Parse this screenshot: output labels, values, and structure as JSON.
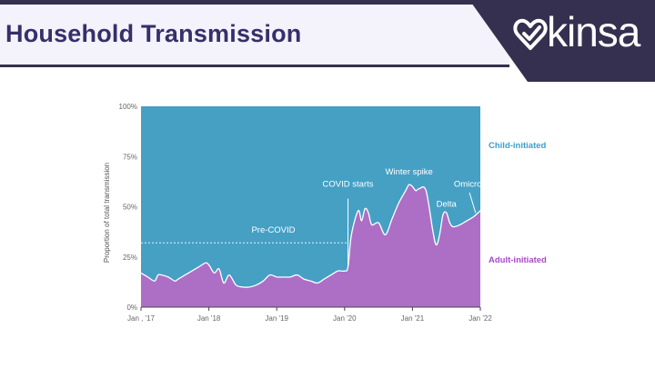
{
  "header": {
    "title": "Household Transmission",
    "logo_text": "kinsa",
    "logo_icon": "heart-check-icon",
    "colors": {
      "bar": "#35304f",
      "title": "#35306a",
      "band": "#f4f2fa"
    }
  },
  "chart_data": {
    "type": "area",
    "stacked": true,
    "percent_stacked": true,
    "ylabel": "Proportion of total transmission",
    "xlabel": "",
    "xlim": [
      2017.0,
      2022.0
    ],
    "ylim": [
      0,
      100
    ],
    "x_ticks": [
      {
        "value": 2017,
        "label": "Jan , '17"
      },
      {
        "value": 2018,
        "label": "Jan '18"
      },
      {
        "value": 2019,
        "label": "Jan '19"
      },
      {
        "value": 2020,
        "label": "Jan '20"
      },
      {
        "value": 2021,
        "label": "Jan '21"
      },
      {
        "value": 2022,
        "label": "Jan '22"
      }
    ],
    "y_ticks": [
      {
        "value": 0,
        "label": "0%"
      },
      {
        "value": 25,
        "label": "25%"
      },
      {
        "value": 50,
        "label": "50%"
      },
      {
        "value": 75,
        "label": "75%"
      },
      {
        "value": 100,
        "label": "100%"
      }
    ],
    "grid": false,
    "series": [
      {
        "name": "Adult-initiated",
        "color": "#ad6fc6",
        "label_color": "#a64bc6"
      },
      {
        "name": "Child-initiated",
        "color": "#45a0c4",
        "label_color": "#3a9fcc"
      }
    ],
    "x": [
      2017.0,
      2017.1,
      2017.2,
      2017.25,
      2017.3,
      2017.4,
      2017.5,
      2017.55,
      2017.7,
      2017.85,
      2017.95,
      2018.0,
      2018.08,
      2018.15,
      2018.22,
      2018.3,
      2018.4,
      2018.5,
      2018.6,
      2018.7,
      2018.8,
      2018.9,
      2019.0,
      2019.1,
      2019.2,
      2019.3,
      2019.4,
      2019.5,
      2019.6,
      2019.7,
      2019.8,
      2019.9,
      2020.0,
      2020.05,
      2020.1,
      2020.2,
      2020.25,
      2020.3,
      2020.35,
      2020.4,
      2020.5,
      2020.6,
      2020.7,
      2020.8,
      2020.9,
      2020.95,
      2021.0,
      2021.05,
      2021.1,
      2021.2,
      2021.3,
      2021.35,
      2021.4,
      2021.45,
      2021.5,
      2021.55,
      2021.6,
      2021.7,
      2021.8,
      2021.9,
      2022.0
    ],
    "adult_initiated": [
      17,
      15,
      13,
      16,
      16,
      15,
      13,
      14,
      17,
      20,
      22,
      21,
      17,
      19,
      12,
      16,
      11,
      10,
      10,
      11,
      13,
      16,
      15,
      15,
      15,
      16,
      14,
      13,
      12,
      14,
      16,
      18,
      18,
      20,
      36,
      48,
      43,
      49,
      47,
      41,
      42,
      36,
      44,
      52,
      58,
      61,
      60,
      58,
      59,
      58,
      38,
      31,
      36,
      46,
      47,
      42,
      40,
      41,
      43,
      45,
      48
    ],
    "annotations": [
      {
        "text": "Pre-COVID",
        "x": 2018.95,
        "y": 37
      },
      {
        "text": "COVID starts",
        "x": 2020.05,
        "y": 60
      },
      {
        "text": "Winter spike",
        "x": 2020.95,
        "y": 66
      },
      {
        "text": "Delta",
        "x": 2021.5,
        "y": 50
      },
      {
        "text": "Omicron",
        "x": 2021.85,
        "y": 60
      }
    ],
    "precovid_line": {
      "x_start": 2017.0,
      "x_end": 2020.05,
      "y": 32
    },
    "covid_marker": {
      "x": 2020.05,
      "y_from": 20,
      "y_to": 54
    },
    "omicron_pointer": {
      "x_from": 2021.84,
      "y_from": 57,
      "x_to": 2021.93,
      "y_to": 47
    }
  }
}
